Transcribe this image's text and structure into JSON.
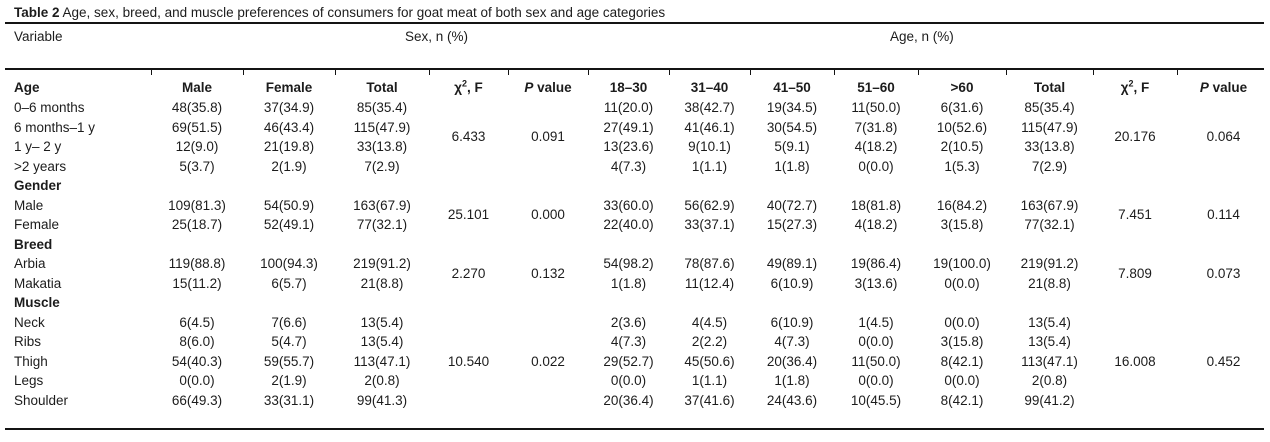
{
  "page": {
    "background": "#ffffff",
    "text_color": "#1c1c1c",
    "rule_color": "#141414"
  },
  "title": {
    "label": "Table 2",
    "caption": " Age, sex, breed, and muscle preferences of consumers for goat meat of both sex and age categories"
  },
  "group_header": {
    "variable": "Variable",
    "sex": "Sex, n (%)",
    "age": "Age, n (%)"
  },
  "table": {
    "stub_header": "Age",
    "sex_columns": [
      "Male",
      "Female",
      "Total"
    ],
    "age_columns": [
      "18–30",
      "31–40",
      "41–50",
      "51–60",
      ">60",
      "Total"
    ],
    "chi_header": {
      "base": "χ",
      "sup": "2",
      "rest": ", F"
    },
    "p_header": {
      "italic": "P",
      "rest": " value"
    },
    "sections": [
      {
        "label": "",
        "stats": {
          "sex_chi": "6.433",
          "sex_p": "0.091",
          "age_chi": "20.176",
          "age_p": "0.064"
        },
        "rows": [
          {
            "label": "0–6 months",
            "sex": [
              "48(35.8)",
              "37(34.9)",
              "85(35.4)"
            ],
            "age": [
              "11(20.0)",
              "38(42.7)",
              "19(34.5)",
              "11(50.0)",
              "6(31.6)",
              "85(35.4)"
            ]
          },
          {
            "label": "6 months–1 y",
            "sex": [
              "69(51.5)",
              "46(43.4)",
              "115(47.9)"
            ],
            "age": [
              "27(49.1)",
              "41(46.1)",
              "30(54.5)",
              "7(31.8)",
              "10(52.6)",
              "115(47.9)"
            ]
          },
          {
            "label": "1 y– 2 y",
            "sex": [
              "12(9.0)",
              "21(19.8)",
              "33(13.8)"
            ],
            "age": [
              "13(23.6)",
              "9(10.1)",
              "5(9.1)",
              "4(18.2)",
              "2(10.5)",
              "33(13.8)"
            ]
          },
          {
            "label": ">2 years",
            "sex": [
              "5(3.7)",
              "2(1.9)",
              "7(2.9)"
            ],
            "age": [
              "4(7.3)",
              "1(1.1)",
              "1(1.8)",
              "0(0.0)",
              "1(5.3)",
              "7(2.9)"
            ]
          }
        ]
      },
      {
        "label": "Gender",
        "stats": {
          "sex_chi": "25.101",
          "sex_p": "0.000",
          "age_chi": "7.451",
          "age_p": "0.114"
        },
        "rows": [
          {
            "label": "Male",
            "sex": [
              "109(81.3)",
              "54(50.9)",
              "163(67.9)"
            ],
            "age": [
              "33(60.0)",
              "56(62.9)",
              "40(72.7)",
              "18(81.8)",
              "16(84.2)",
              "163(67.9)"
            ]
          },
          {
            "label": "Female",
            "sex": [
              "25(18.7)",
              "52(49.1)",
              "77(32.1)"
            ],
            "age": [
              "22(40.0)",
              "33(37.1)",
              "15(27.3)",
              "4(18.2)",
              "3(15.8)",
              "77(32.1)"
            ]
          }
        ]
      },
      {
        "label": "Breed",
        "stats": {
          "sex_chi": "2.270",
          "sex_p": "0.132",
          "age_chi": "7.809",
          "age_p": "0.073"
        },
        "rows": [
          {
            "label": "Arbia",
            "sex": [
              "119(88.8)",
              "100(94.3)",
              "219(91.2)"
            ],
            "age": [
              "54(98.2)",
              "78(87.6)",
              "49(89.1)",
              "19(86.4)",
              "19(100.0)",
              "219(91.2)"
            ]
          },
          {
            "label": "Makatia",
            "sex": [
              "15(11.2)",
              "6(5.7)",
              "21(8.8)"
            ],
            "age": [
              "1(1.8)",
              "11(12.4)",
              "6(10.9)",
              "3(13.6)",
              "0(0.0)",
              "21(8.8)"
            ]
          }
        ]
      },
      {
        "label": "Muscle",
        "stats": {
          "sex_chi": "10.540",
          "sex_p": "0.022",
          "age_chi": "16.008",
          "age_p": "0.452"
        },
        "rows": [
          {
            "label": "Neck",
            "sex": [
              "6(4.5)",
              "7(6.6)",
              "13(5.4)"
            ],
            "age": [
              "2(3.6)",
              "4(4.5)",
              "6(10.9)",
              "1(4.5)",
              "0(0.0)",
              "13(5.4)"
            ]
          },
          {
            "label": "Ribs",
            "sex": [
              "8(6.0)",
              "5(4.7)",
              "13(5.4)"
            ],
            "age": [
              "4(7.3)",
              "2(2.2)",
              "4(7.3)",
              "0(0.0)",
              "3(15.8)",
              "13(5.4)"
            ]
          },
          {
            "label": "Thigh",
            "sex": [
              "54(40.3)",
              "59(55.7)",
              "113(47.1)"
            ],
            "age": [
              "29(52.7)",
              "45(50.6)",
              "20(36.4)",
              "11(50.0)",
              "8(42.1)",
              "113(47.1)"
            ]
          },
          {
            "label": "Legs",
            "sex": [
              "0(0.0)",
              "2(1.9)",
              "2(0.8)"
            ],
            "age": [
              "0(0.0)",
              "1(1.1)",
              "1(1.8)",
              "0(0.0)",
              "0(0.0)",
              "2(0.8)"
            ]
          },
          {
            "label": "Shoulder",
            "sex": [
              "66(49.3)",
              "33(31.1)",
              "99(41.3)"
            ],
            "age": [
              "20(36.4)",
              "37(41.6)",
              "24(43.6)",
              "10(45.5)",
              "8(42.1)",
              "99(41.2)"
            ]
          }
        ]
      }
    ]
  }
}
